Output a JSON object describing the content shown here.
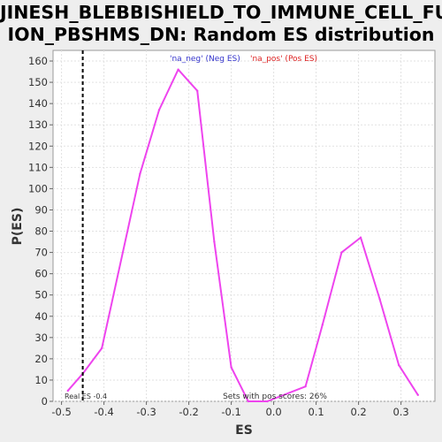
{
  "chart_data": {
    "type": "line",
    "title_line1": "JINESH_BLEBBISHIELD_TO_IMMUNE_CELL_FUS",
    "title_line2": "ION_PBSHMS_DN: Random ES distribution",
    "xlabel": "ES",
    "ylabel": "P(ES)",
    "xlim": [
      -0.52,
      0.38
    ],
    "ylim": [
      0,
      165
    ],
    "xticks": [
      -0.5,
      -0.4,
      -0.3,
      -0.2,
      -0.1,
      0.0,
      0.1,
      0.2,
      0.3
    ],
    "xtick_labels": [
      "-0.5",
      "-0.4",
      "-0.3",
      "-0.2",
      "-0.1",
      "0.0",
      "0.1",
      "0.2",
      "0.3"
    ],
    "yticks": [
      0,
      10,
      20,
      30,
      40,
      50,
      60,
      70,
      80,
      90,
      100,
      110,
      120,
      130,
      140,
      150,
      160
    ],
    "ytick_labels": [
      "0",
      "10",
      "20",
      "30",
      "40",
      "50",
      "60",
      "70",
      "80",
      "90",
      "100",
      "110",
      "120",
      "130",
      "140",
      "150",
      "160"
    ],
    "grid": true,
    "legend": [
      {
        "label": "'na_neg' (Neg ES)",
        "color": "#3333cc"
      },
      {
        "label": "'na_pos' (Pos ES)",
        "color": "#dd2222"
      }
    ],
    "series": [
      {
        "color": "#ee44ee",
        "x": [
          -0.485,
          -0.45,
          -0.405,
          -0.315,
          -0.27,
          -0.225,
          -0.18,
          -0.14,
          -0.1,
          -0.06,
          -0.015,
          0.075,
          0.115,
          0.16,
          0.205,
          0.25,
          0.295,
          0.34
        ],
        "y": [
          5,
          13,
          25,
          107,
          137,
          156,
          146,
          75,
          16,
          0,
          0,
          7,
          36,
          70,
          77,
          48,
          17,
          3
        ]
      }
    ],
    "real_es": {
      "x": -0.45,
      "label": "Real ES -0.4"
    },
    "annotation": "Sets with pos scores: 26%"
  }
}
